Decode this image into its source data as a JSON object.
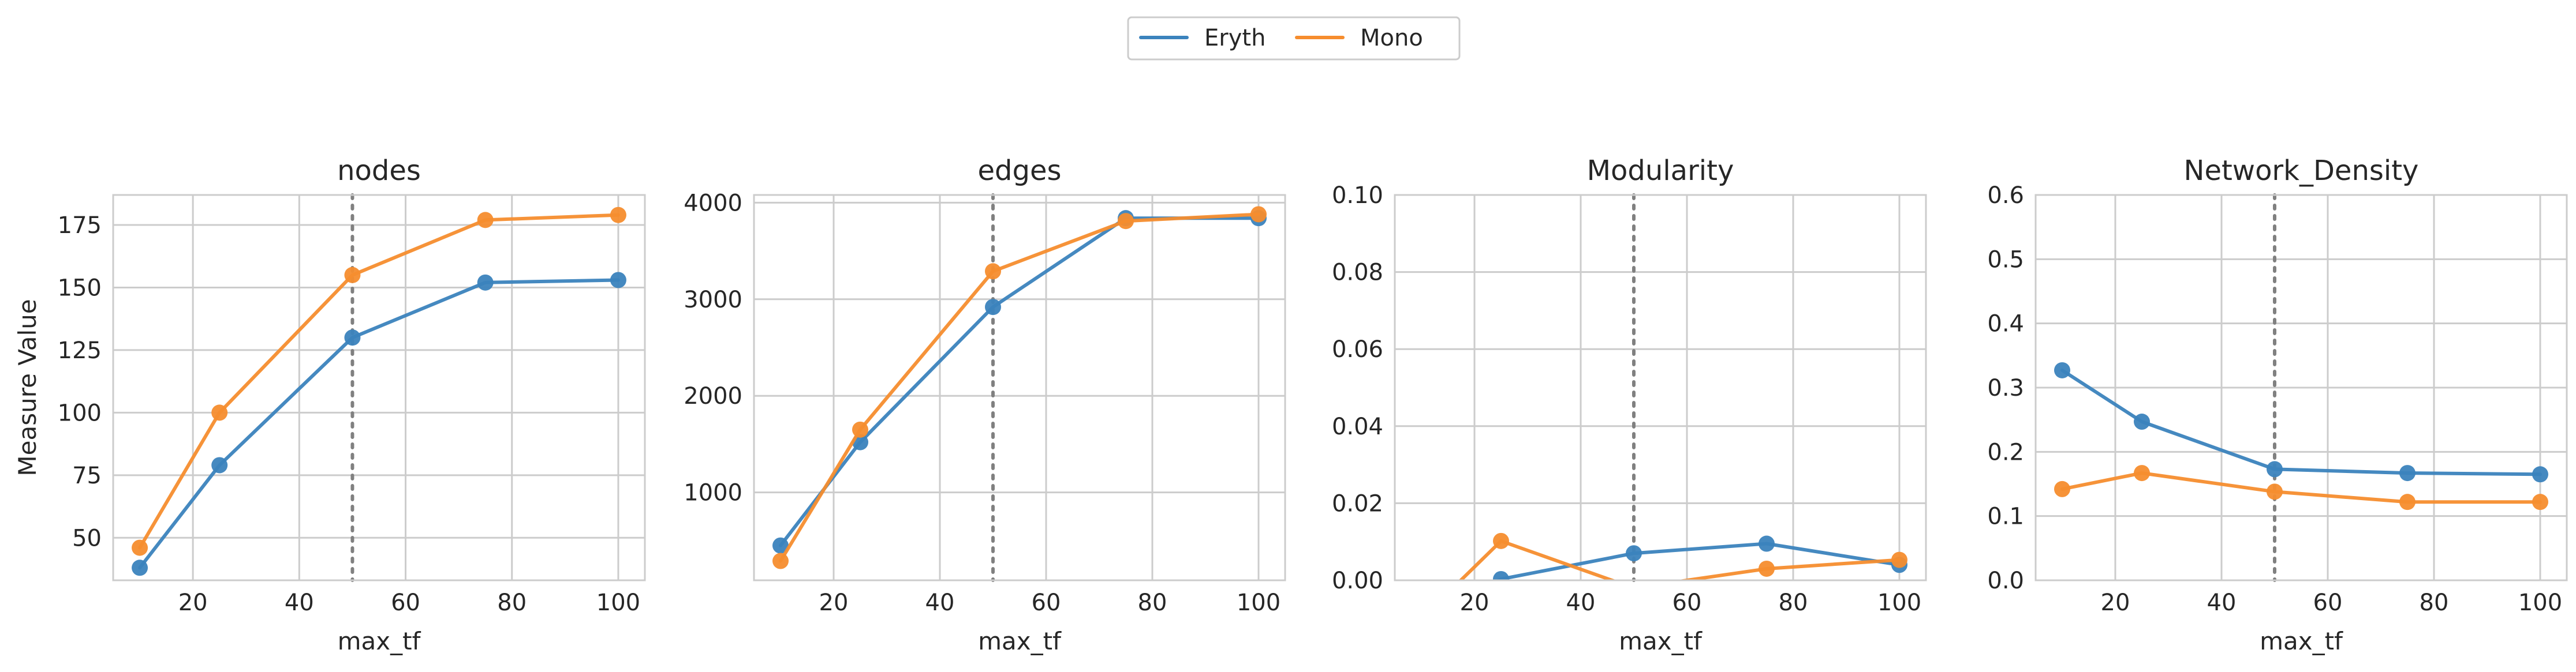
{
  "legend": {
    "items": [
      {
        "label": "Eryth",
        "color": "#3b83bd"
      },
      {
        "label": "Mono",
        "color": "#f68d2e"
      }
    ]
  },
  "chart_data": [
    {
      "type": "line",
      "title": "nodes",
      "xlabel": "max_tf",
      "ylabel": "Measure Value",
      "xlim": [
        5,
        105
      ],
      "ylim": [
        33,
        187
      ],
      "xticks": [
        20,
        40,
        60,
        80,
        100
      ],
      "yticks": [
        50,
        75,
        100,
        125,
        150,
        175
      ],
      "ytick_labels": [
        "50",
        "75",
        "100",
        "125",
        "150",
        "175"
      ],
      "vline": 50,
      "series": [
        {
          "name": "Eryth",
          "x": [
            10,
            25,
            50,
            75,
            100
          ],
          "y": [
            38,
            79,
            130,
            152,
            153
          ]
        },
        {
          "name": "Mono",
          "x": [
            10,
            25,
            50,
            75,
            100
          ],
          "y": [
            46,
            100,
            155,
            177,
            179
          ]
        }
      ]
    },
    {
      "type": "line",
      "title": "edges",
      "xlabel": "max_tf",
      "ylabel": "",
      "xlim": [
        5,
        105
      ],
      "ylim": [
        90,
        4080
      ],
      "xticks": [
        20,
        40,
        60,
        80,
        100
      ],
      "yticks": [
        1000,
        2000,
        3000,
        4000
      ],
      "ytick_labels": [
        "1000",
        "2000",
        "3000",
        "4000"
      ],
      "vline": 50,
      "series": [
        {
          "name": "Eryth",
          "x": [
            10,
            25,
            50,
            75,
            100
          ],
          "y": [
            450,
            1520,
            2920,
            3840,
            3840
          ]
        },
        {
          "name": "Mono",
          "x": [
            10,
            25,
            50,
            75,
            100
          ],
          "y": [
            290,
            1650,
            3290,
            3810,
            3880
          ]
        }
      ]
    },
    {
      "type": "line",
      "title": "Modularity",
      "xlabel": "max_tf",
      "ylabel": "",
      "xlim": [
        5,
        105
      ],
      "ylim": [
        0,
        0.1
      ],
      "xticks": [
        20,
        40,
        60,
        80,
        100
      ],
      "yticks": [
        0,
        0.02,
        0.04,
        0.06,
        0.08,
        0.1
      ],
      "ytick_labels": [
        "0.00",
        "0.02",
        "0.04",
        "0.06",
        "0.08",
        "0.10"
      ],
      "vline": 50,
      "series": [
        {
          "name": "Eryth",
          "x": [
            10,
            25,
            50,
            75,
            100
          ],
          "y": [
            -0.01,
            0.0003,
            0.007,
            0.0095,
            0.004
          ]
        },
        {
          "name": "Mono",
          "x": [
            10,
            25,
            50,
            75,
            100
          ],
          "y": [
            -0.01,
            0.0102,
            -0.002,
            0.003,
            0.0053
          ]
        }
      ]
    },
    {
      "type": "line",
      "title": "Network_Density",
      "xlabel": "max_tf",
      "ylabel": "",
      "xlim": [
        5,
        105
      ],
      "ylim": [
        0,
        0.6
      ],
      "xticks": [
        20,
        40,
        60,
        80,
        100
      ],
      "yticks": [
        0,
        0.1,
        0.2,
        0.3,
        0.4,
        0.5,
        0.6
      ],
      "ytick_labels": [
        "0.0",
        "0.1",
        "0.2",
        "0.3",
        "0.4",
        "0.5",
        "0.6"
      ],
      "vline": 50,
      "series": [
        {
          "name": "Eryth",
          "x": [
            10,
            25,
            50,
            75,
            100
          ],
          "y": [
            0.327,
            0.247,
            0.173,
            0.167,
            0.165
          ]
        },
        {
          "name": "Mono",
          "x": [
            10,
            25,
            50,
            75,
            100
          ],
          "y": [
            0.142,
            0.167,
            0.138,
            0.122,
            0.122
          ]
        }
      ]
    }
  ]
}
